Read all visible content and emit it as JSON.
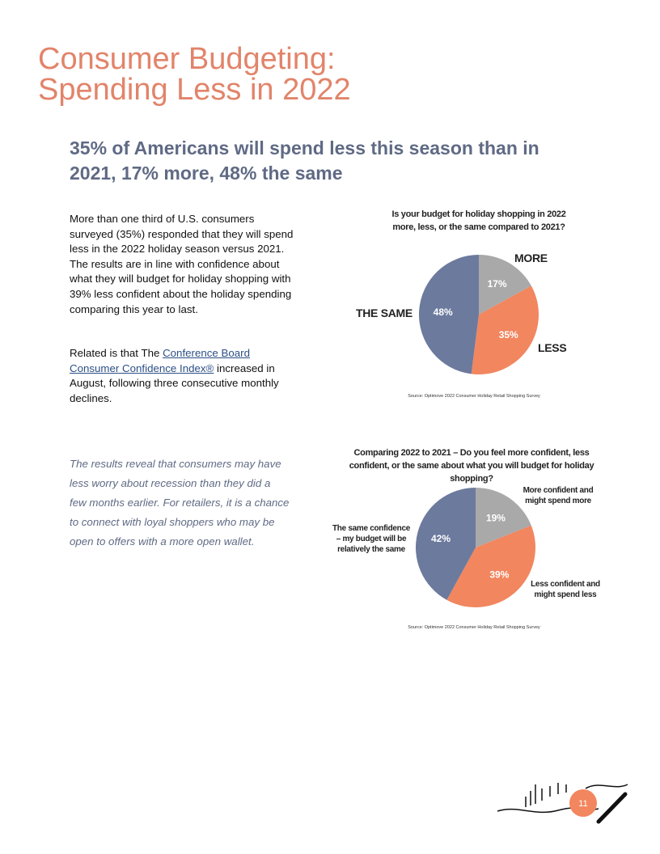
{
  "document": {
    "title": [
      "Consumer Budgeting:",
      "Spending Less in 2022"
    ],
    "subtitle": "35% of Americans will spend less this season than in 2021, 17% more, 48% the same",
    "paragraph_1": "More than one third of U.S. consumers surveyed (35%) responded that they will spend less in the 2022 holiday season versus 2021. The results are in line with confidence about what they will budget for holiday shopping with 39% less confident about the holiday spending comparing this year to last.",
    "paragraph_2": {
      "before": "Related is that The ",
      "link": "Conference Board Consumer Confidence Index®",
      "after": " increased in August, following three consecutive monthly declines."
    },
    "quote": "The results reveal that consumers may have less worry about recession than they did a few months earlier. For retailers, it is a chance to connect with loyal shoppers who may be open to offers with a more open wallet.",
    "page_number": "11"
  },
  "chart_data": [
    {
      "type": "pie",
      "title": "Is your budget for holiday shopping in 2022 more, less, or the same compared to 2021?",
      "categories": [
        "MORE",
        "LESS",
        "THE SAME"
      ],
      "values": [
        17,
        35,
        48
      ],
      "value_labels": [
        "17%",
        "35%",
        "48%"
      ],
      "colors": [
        "#a9a9a9",
        "#f2865f",
        "#6c7a9e"
      ],
      "source": "Source: Optimove 2022 Consumer Holiday Retail Shopping Survey"
    },
    {
      "type": "pie",
      "title": "Comparing 2022 to 2021 – Do you feel more confident, less confident, or the same about what you will budget for holiday shopping?",
      "categories": [
        "More confident and might spend more",
        "Less confident and might spend less",
        "The same confidence – my budget will be relatively the same"
      ],
      "values": [
        19,
        39,
        42
      ],
      "value_labels": [
        "19%",
        "39%",
        "42%"
      ],
      "colors": [
        "#a9a9a9",
        "#f2865f",
        "#6c7a9e"
      ],
      "source": "Source: Optimove 2022 Consumer Holiday Retail Shopping Survey"
    }
  ]
}
